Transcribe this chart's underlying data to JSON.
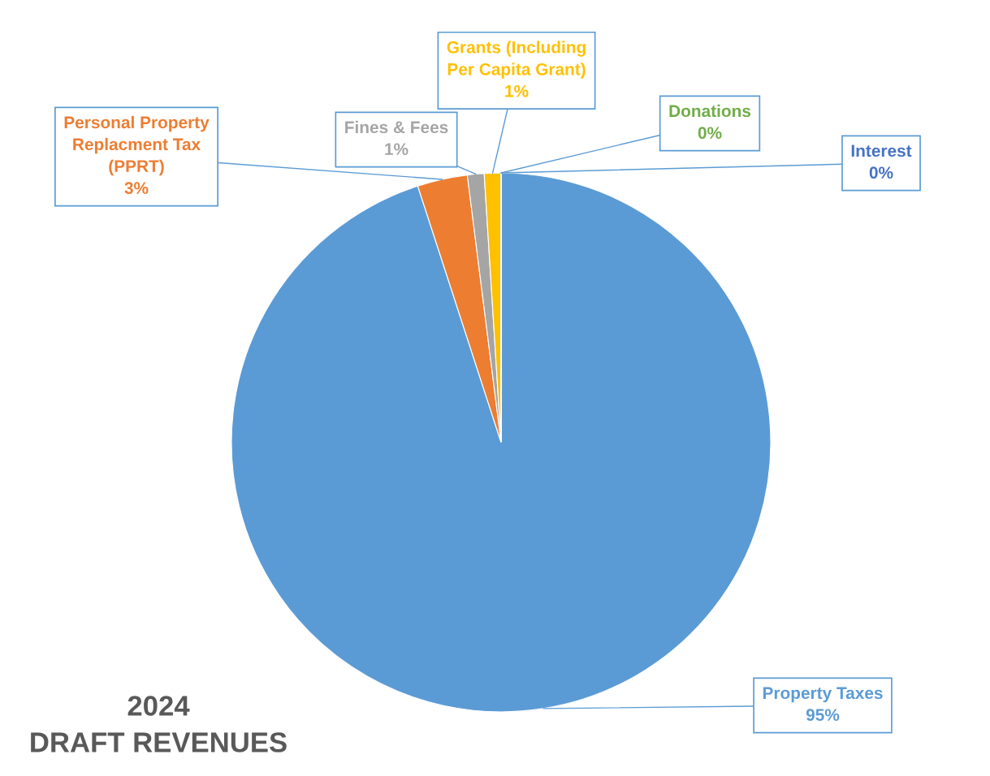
{
  "chart_data": {
    "type": "pie",
    "title": "2024\nDRAFT REVENUES",
    "categories": [
      "Property Taxes",
      "Personal Property\nReplacment Tax\n(PPRT)",
      "Fines & Fees",
      "Grants (Including\nPer Capita Grant)",
      "Donations",
      "Interest"
    ],
    "values": [
      95,
      3,
      1,
      1,
      0,
      0
    ],
    "value_labels": [
      "95%",
      "3%",
      "1%",
      "1%",
      "0%",
      "0%"
    ],
    "colors": [
      "#5b9bd5",
      "#ed7d31",
      "#a5a5a5",
      "#ffc000",
      "#70ad47",
      "#4472c4"
    ],
    "legend": false
  }
}
